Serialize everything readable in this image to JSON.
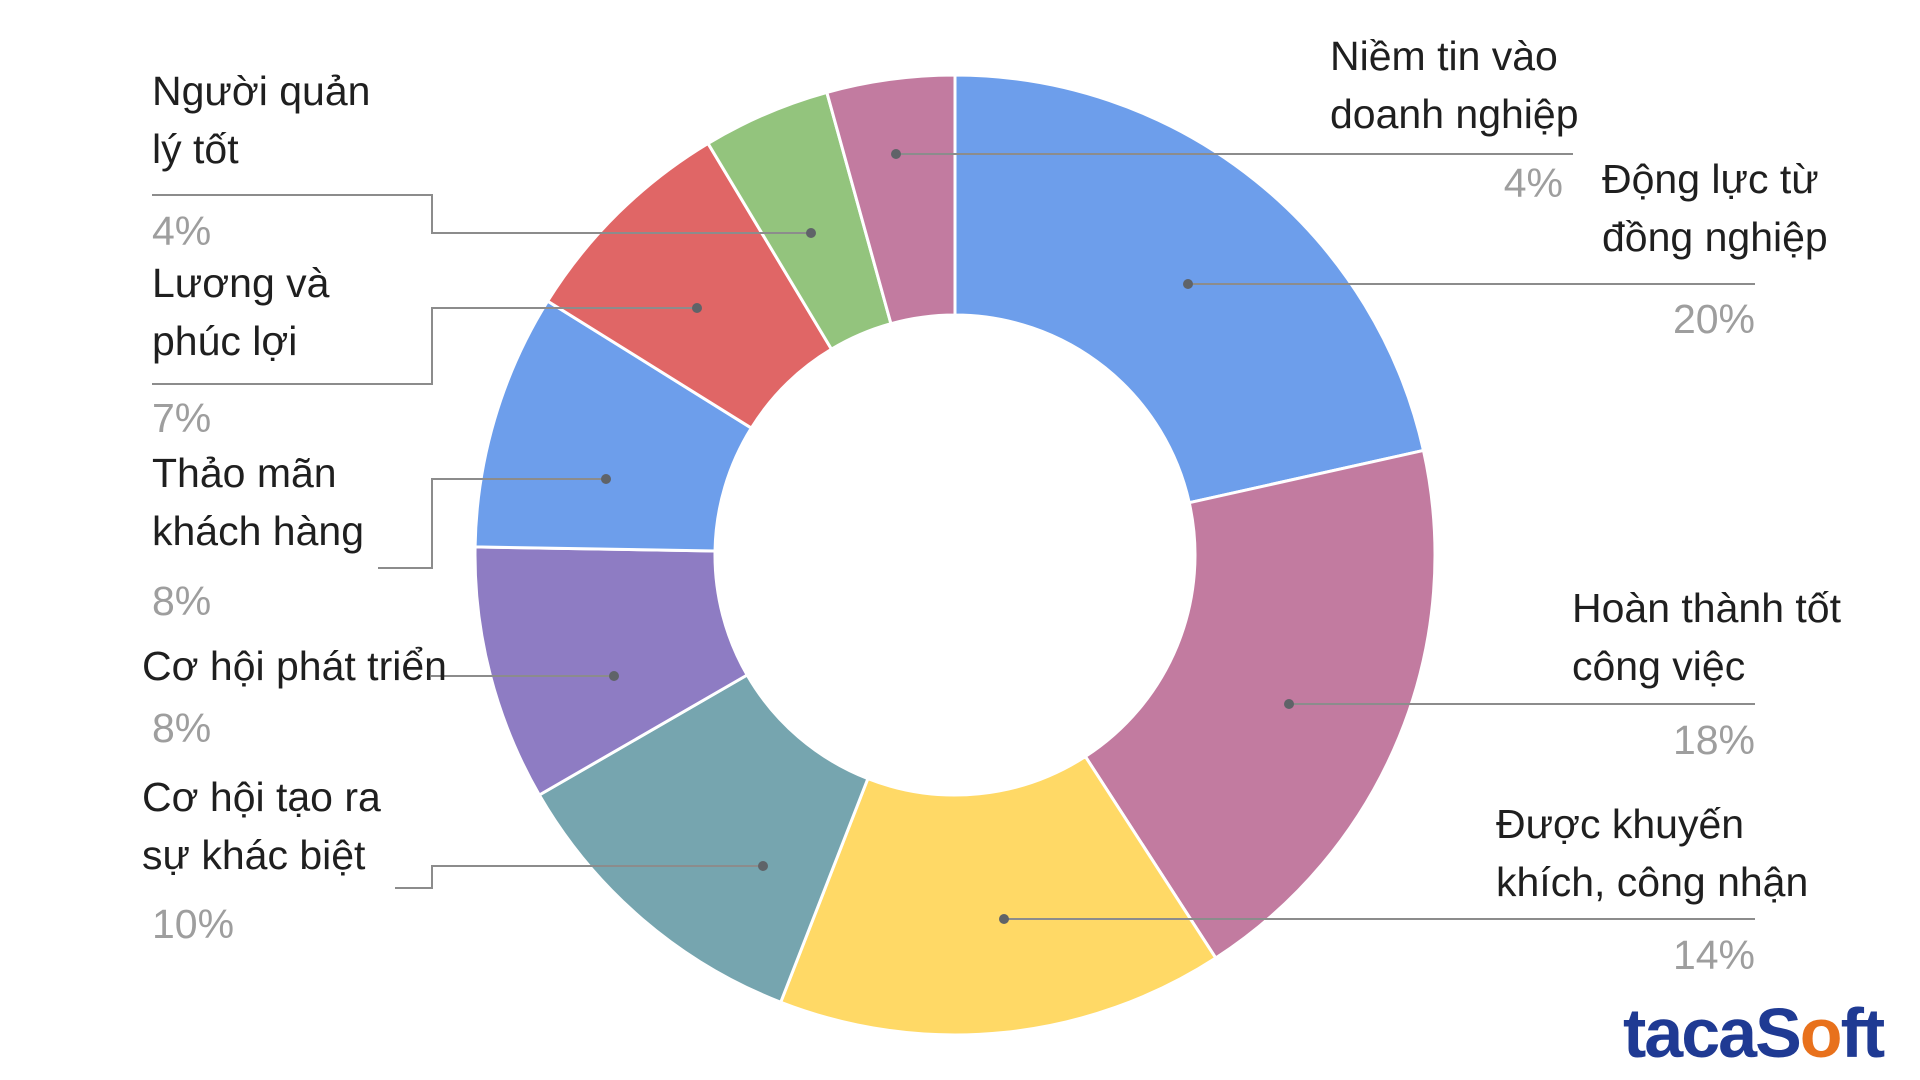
{
  "chart_data": {
    "type": "pie",
    "donut": true,
    "title": "",
    "slices": [
      {
        "key": "trust",
        "lines": [
          "Niềm tin vào",
          "doanh nghiệp"
        ],
        "value": 4,
        "label_pct": "4%",
        "color": "#c27ba0"
      },
      {
        "key": "peer",
        "lines": [
          "Động lực từ",
          "đồng nghiệp"
        ],
        "value": 20,
        "label_pct": "20%",
        "color": "#6d9eeb"
      },
      {
        "key": "work",
        "lines": [
          "Hoàn thành tốt",
          "công việc"
        ],
        "value": 18,
        "label_pct": "18%",
        "color": "#c27ba0"
      },
      {
        "key": "recognition",
        "lines": [
          "Được khuyến",
          "khích, công nhận"
        ],
        "value": 14,
        "label_pct": "14%",
        "color": "#ffd966"
      },
      {
        "key": "difference",
        "lines": [
          "Cơ hội tạo ra",
          "sự khác biệt"
        ],
        "value": 10,
        "label_pct": "10%",
        "color": "#76a5af"
      },
      {
        "key": "growth",
        "lines": [
          "Cơ hội phát triển"
        ],
        "value": 8,
        "label_pct": "8%",
        "color": "#8e7cc3"
      },
      {
        "key": "customer",
        "lines": [
          "Thảo mãn",
          "khách hàng"
        ],
        "value": 8,
        "label_pct": "8%",
        "color": "#6d9eeb"
      },
      {
        "key": "salary",
        "lines": [
          "Lương và",
          "phúc lợi"
        ],
        "value": 7,
        "label_pct": "7%",
        "color": "#e06666"
      },
      {
        "key": "manager",
        "lines": [
          "Người quản",
          "lý tốt"
        ],
        "value": 4,
        "label_pct": "4%",
        "color": "#93c47d"
      }
    ],
    "legend": "none"
  },
  "brand": {
    "logo_prefix": "tacaS",
    "logo_mark": "o",
    "logo_suffix": "ft",
    "logo_color": "#1f3a93",
    "logo_accent": "#e8711c"
  }
}
